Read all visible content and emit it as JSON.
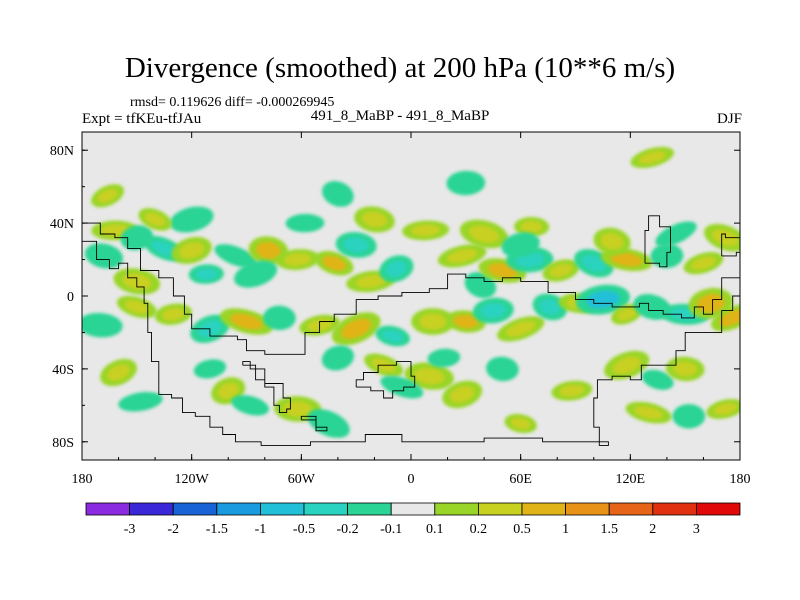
{
  "header": {
    "title": "Divergence (smoothed) at 200 hPa (10**6 m/s)",
    "stats": "rmsd= 0.119626  diff= -0.000269945",
    "left_label": "Expt = tfKEu-tfJAu",
    "center_label": "491_8_MaBP - 491_8_MaBP",
    "right_label": "DJF"
  },
  "chart_data": {
    "type": "heatmap",
    "projection": "cylindrical-equidistant",
    "xlim": [
      -180,
      180
    ],
    "ylim": [
      -90,
      90
    ],
    "x_ticks": [
      {
        "value": -180,
        "label": "180"
      },
      {
        "value": -120,
        "label": "120W"
      },
      {
        "value": -60,
        "label": "60W"
      },
      {
        "value": 0,
        "label": "0"
      },
      {
        "value": 60,
        "label": "60E"
      },
      {
        "value": 120,
        "label": "120E"
      },
      {
        "value": 180,
        "label": "180"
      }
    ],
    "y_ticks": [
      {
        "value": 80,
        "label": "80N"
      },
      {
        "value": 40,
        "label": "40N"
      },
      {
        "value": 0,
        "label": "0"
      },
      {
        "value": -40,
        "label": "40S"
      },
      {
        "value": -80,
        "label": "80S"
      }
    ],
    "background_color": "#e8e8e8",
    "colorbar": {
      "levels": [
        "-3",
        "-2",
        "-1.5",
        "-1",
        "-0.5",
        "-0.2",
        "-0.1",
        "0.1",
        "0.2",
        "0.5",
        "1",
        "1.5",
        "2",
        "3"
      ],
      "colors": [
        "#8a2be2",
        "#3a28d8",
        "#1863d6",
        "#1a9be0",
        "#22c0d8",
        "#2ad2c0",
        "#2ad494",
        "#e8e8e8",
        "#99d528",
        "#c8d020",
        "#e0b418",
        "#e89218",
        "#e66418",
        "#e03010",
        "#e00808"
      ]
    },
    "blobs": [
      {
        "lon": -166,
        "lat": 55,
        "value": 0.3
      },
      {
        "lon": -168,
        "lat": 22,
        "value": -0.2
      },
      {
        "lon": -162,
        "lat": 36,
        "value": 0.3
      },
      {
        "lon": -150,
        "lat": 32,
        "value": -0.2
      },
      {
        "lon": -135,
        "lat": 26,
        "value": -0.4
      },
      {
        "lon": -150,
        "lat": 8,
        "value": 0.3
      },
      {
        "lon": -112,
        "lat": 12,
        "value": -0.3
      },
      {
        "lon": -120,
        "lat": 25,
        "value": 0.3
      },
      {
        "lon": -96,
        "lat": 22,
        "value": -0.2
      },
      {
        "lon": -78,
        "lat": 25,
        "value": 0.5
      },
      {
        "lon": -62,
        "lat": 20,
        "value": 0.4
      },
      {
        "lon": -85,
        "lat": 12,
        "value": -0.2
      },
      {
        "lon": -42,
        "lat": 18,
        "value": 0.5
      },
      {
        "lon": -30,
        "lat": 28,
        "value": -0.3
      },
      {
        "lon": -22,
        "lat": 8,
        "value": 0.4
      },
      {
        "lon": -8,
        "lat": 15,
        "value": -0.3
      },
      {
        "lon": -150,
        "lat": -6,
        "value": 0.3
      },
      {
        "lon": -170,
        "lat": -16,
        "value": -0.2
      },
      {
        "lon": -130,
        "lat": -10,
        "value": 0.4
      },
      {
        "lon": -110,
        "lat": -18,
        "value": -0.3
      },
      {
        "lon": -90,
        "lat": -14,
        "value": 0.6
      },
      {
        "lon": -72,
        "lat": -12,
        "value": -0.2
      },
      {
        "lon": -50,
        "lat": -16,
        "value": 0.3
      },
      {
        "lon": -30,
        "lat": -18,
        "value": 0.5
      },
      {
        "lon": -10,
        "lat": -22,
        "value": -0.3
      },
      {
        "lon": 12,
        "lat": -14,
        "value": 0.4
      },
      {
        "lon": 28,
        "lat": 22,
        "value": 0.4
      },
      {
        "lon": 38,
        "lat": 6,
        "value": -0.2
      },
      {
        "lon": 50,
        "lat": 14,
        "value": 0.6
      },
      {
        "lon": 65,
        "lat": 20,
        "value": -0.3
      },
      {
        "lon": 82,
        "lat": 14,
        "value": 0.4
      },
      {
        "lon": 100,
        "lat": 18,
        "value": -0.3
      },
      {
        "lon": 118,
        "lat": 20,
        "value": 0.5
      },
      {
        "lon": 140,
        "lat": 22,
        "value": -0.2
      },
      {
        "lon": 160,
        "lat": 18,
        "value": 0.3
      },
      {
        "lon": 172,
        "lat": 32,
        "value": 0.2
      },
      {
        "lon": 30,
        "lat": -14,
        "value": 0.5
      },
      {
        "lon": 45,
        "lat": -8,
        "value": -0.3
      },
      {
        "lon": 60,
        "lat": -18,
        "value": 0.4
      },
      {
        "lon": 76,
        "lat": -6,
        "value": -0.3
      },
      {
        "lon": 92,
        "lat": -4,
        "value": 0.3
      },
      {
        "lon": 105,
        "lat": -2,
        "value": -0.6
      },
      {
        "lon": 118,
        "lat": -10,
        "value": 0.2
      },
      {
        "lon": 132,
        "lat": -6,
        "value": -0.2
      },
      {
        "lon": 150,
        "lat": -10,
        "value": -0.4
      },
      {
        "lon": 164,
        "lat": -4,
        "value": 0.7
      },
      {
        "lon": 176,
        "lat": -12,
        "value": 0.5
      },
      {
        "lon": 40,
        "lat": 34,
        "value": 0.4
      },
      {
        "lon": 66,
        "lat": 38,
        "value": 0.3
      },
      {
        "lon": 60,
        "lat": 28,
        "value": -0.2
      },
      {
        "lon": 145,
        "lat": 34,
        "value": -0.2
      },
      {
        "lon": 110,
        "lat": 30,
        "value": 0.4
      },
      {
        "lon": -58,
        "lat": 40,
        "value": -0.2
      },
      {
        "lon": -120,
        "lat": 42,
        "value": -0.2
      },
      {
        "lon": -140,
        "lat": 42,
        "value": 0.3
      },
      {
        "lon": -20,
        "lat": 42,
        "value": 0.3
      },
      {
        "lon": 8,
        "lat": 36,
        "value": 0.3
      },
      {
        "lon": -40,
        "lat": -34,
        "value": -0.2
      },
      {
        "lon": -15,
        "lat": -38,
        "value": 0.3
      },
      {
        "lon": 10,
        "lat": -44,
        "value": 0.4
      },
      {
        "lon": 18,
        "lat": -34,
        "value": -0.2
      },
      {
        "lon": 28,
        "lat": -54,
        "value": 0.3
      },
      {
        "lon": -5,
        "lat": -50,
        "value": -0.2
      },
      {
        "lon": 50,
        "lat": -40,
        "value": -0.2
      },
      {
        "lon": 88,
        "lat": -52,
        "value": 0.3
      },
      {
        "lon": 118,
        "lat": -38,
        "value": 0.3
      },
      {
        "lon": 135,
        "lat": -46,
        "value": -0.2
      },
      {
        "lon": 150,
        "lat": -40,
        "value": 0.2
      },
      {
        "lon": -148,
        "lat": -58,
        "value": -0.2
      },
      {
        "lon": -100,
        "lat": -52,
        "value": 0.3
      },
      {
        "lon": -88,
        "lat": -60,
        "value": -0.2
      },
      {
        "lon": -62,
        "lat": -62,
        "value": 0.3
      },
      {
        "lon": -110,
        "lat": -40,
        "value": -0.2
      },
      {
        "lon": -160,
        "lat": -42,
        "value": 0.2
      },
      {
        "lon": 130,
        "lat": -64,
        "value": 0.3
      },
      {
        "lon": 152,
        "lat": -66,
        "value": -0.2
      },
      {
        "lon": 172,
        "lat": -62,
        "value": 0.2
      },
      {
        "lon": -45,
        "lat": -70,
        "value": -0.2
      },
      {
        "lon": 60,
        "lat": -70,
        "value": 0.2
      },
      {
        "lon": 30,
        "lat": 62,
        "value": -0.2
      },
      {
        "lon": 132,
        "lat": 76,
        "value": 0.2
      },
      {
        "lon": -40,
        "lat": 56,
        "value": -0.2
      }
    ],
    "coastlines": [
      [
        [
          -180,
          30
        ],
        [
          -174,
          30
        ],
        [
          -172,
          20
        ],
        [
          -165,
          15
        ],
        [
          -160,
          18
        ],
        [
          -155,
          10
        ],
        [
          -150,
          5
        ],
        [
          -146,
          -4
        ],
        [
          -144,
          -20
        ],
        [
          -142,
          -36
        ],
        [
          -138,
          -54
        ],
        [
          -131,
          -56
        ],
        [
          -125,
          -64
        ],
        [
          -118,
          -66
        ],
        [
          -110,
          -72
        ],
        [
          -103,
          -76
        ],
        [
          -96,
          -80
        ],
        [
          -82,
          -82
        ],
        [
          -55,
          -80
        ],
        [
          -25,
          -76
        ],
        [
          -5,
          -80
        ],
        [
          15,
          -80
        ],
        [
          40,
          -78
        ],
        [
          72,
          -80
        ],
        [
          88,
          -80
        ],
        [
          98,
          -80
        ],
        [
          108,
          -82
        ],
        [
          103,
          -72
        ],
        [
          100,
          -56
        ],
        [
          102,
          -46
        ],
        [
          110,
          -44
        ],
        [
          120,
          -46
        ],
        [
          126,
          -38
        ],
        [
          136,
          -38
        ],
        [
          145,
          -30
        ],
        [
          150,
          -20
        ],
        [
          158,
          -20
        ],
        [
          170,
          -8
        ],
        [
          176,
          0
        ],
        [
          180,
          15
        ]
      ],
      [
        [
          -180,
          40
        ],
        [
          -170,
          34
        ],
        [
          -162,
          32
        ],
        [
          -155,
          26
        ],
        [
          -148,
          14
        ],
        [
          -138,
          10
        ],
        [
          -130,
          0
        ],
        [
          -124,
          -10
        ],
        [
          -120,
          -18
        ],
        [
          -110,
          -22
        ],
        [
          -102,
          -22
        ],
        [
          -95,
          -24
        ],
        [
          -90,
          -30
        ],
        [
          -80,
          -32
        ],
        [
          -70,
          -32
        ],
        [
          -58,
          -20
        ],
        [
          -50,
          -14
        ],
        [
          -42,
          -10
        ],
        [
          -30,
          -2
        ],
        [
          -18,
          0
        ],
        [
          -5,
          2
        ],
        [
          10,
          4
        ],
        [
          20,
          12
        ],
        [
          30,
          10
        ],
        [
          40,
          8
        ],
        [
          50,
          10
        ],
        [
          60,
          8
        ],
        [
          75,
          2
        ],
        [
          90,
          -2
        ],
        [
          100,
          -4
        ],
        [
          110,
          -6
        ],
        [
          125,
          -4
        ],
        [
          130,
          -8
        ],
        [
          138,
          -10
        ],
        [
          148,
          -12
        ],
        [
          155,
          -6
        ],
        [
          160,
          -10
        ],
        [
          165,
          -2
        ],
        [
          170,
          10
        ],
        [
          180,
          28
        ]
      ],
      [
        [
          -92,
          -38
        ],
        [
          -85,
          -46
        ],
        [
          -80,
          -50
        ],
        [
          -75,
          -60
        ],
        [
          -72,
          -64
        ],
        [
          -68,
          -62
        ],
        [
          -66,
          -56
        ],
        [
          -70,
          -48
        ],
        [
          -80,
          -40
        ],
        [
          -88,
          -36
        ],
        [
          -92,
          -38
        ]
      ],
      [
        [
          -30,
          -50
        ],
        [
          -22,
          -52
        ],
        [
          -15,
          -56
        ],
        [
          -10,
          -52
        ],
        [
          -4,
          -50
        ],
        [
          2,
          -44
        ],
        [
          0,
          -36
        ],
        [
          -8,
          -38
        ],
        [
          -18,
          -42
        ],
        [
          -26,
          -46
        ],
        [
          -30,
          -50
        ]
      ],
      [
        [
          128,
          18
        ],
        [
          136,
          16
        ],
        [
          140,
          24
        ],
        [
          142,
          38
        ],
        [
          136,
          44
        ],
        [
          130,
          36
        ],
        [
          128,
          18
        ]
      ],
      [
        [
          -60,
          -68
        ],
        [
          -52,
          -74
        ],
        [
          -46,
          -72
        ],
        [
          -52,
          -66
        ],
        [
          -60,
          -68
        ]
      ],
      [
        [
          170,
          22
        ],
        [
          178,
          24
        ],
        [
          180,
          32
        ],
        [
          172,
          34
        ],
        [
          170,
          22
        ]
      ]
    ]
  }
}
